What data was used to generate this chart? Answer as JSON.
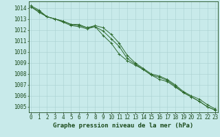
{
  "xlabel": "Graphe pression niveau de la mer (hPa)",
  "hours": [
    0,
    1,
    2,
    3,
    4,
    5,
    6,
    7,
    8,
    9,
    10,
    11,
    12,
    13,
    14,
    15,
    16,
    17,
    18,
    19,
    20,
    21,
    22,
    23
  ],
  "series1": [
    1014.2,
    1013.8,
    1013.2,
    1013.0,
    1012.8,
    1012.5,
    1012.5,
    1012.2,
    1012.4,
    1012.2,
    1011.6,
    1010.8,
    1009.7,
    1009.0,
    1008.5,
    1008.0,
    1007.8,
    1007.5,
    1007.0,
    1006.4,
    1006.0,
    1005.7,
    1005.2,
    1004.8
  ],
  "series2": [
    1014.1,
    1013.6,
    1013.2,
    1013.0,
    1012.7,
    1012.4,
    1012.3,
    1012.1,
    1012.3,
    1011.5,
    1010.8,
    1009.8,
    1009.2,
    1008.8,
    1008.4,
    1007.9,
    1007.5,
    1007.3,
    1006.8,
    1006.3,
    1005.9,
    1005.5,
    1005.0,
    1004.7
  ],
  "series3": [
    1014.1,
    1013.7,
    1013.2,
    1013.0,
    1012.8,
    1012.5,
    1012.4,
    1012.2,
    1012.3,
    1011.9,
    1011.2,
    1010.5,
    1009.4,
    1008.9,
    1008.4,
    1007.9,
    1007.7,
    1007.4,
    1006.9,
    1006.3,
    1005.9,
    1005.5,
    1005.0,
    1004.7
  ],
  "line_color": "#2d6a2d",
  "bg_color": "#c8eaea",
  "grid_color": "#a8d0d0",
  "text_color": "#1a4a1a",
  "ylim_min": 1004.5,
  "ylim_max": 1014.6,
  "yticks": [
    1005,
    1006,
    1007,
    1008,
    1009,
    1010,
    1011,
    1012,
    1013,
    1014
  ],
  "tick_fontsize": 5.5,
  "label_fontsize": 6.5
}
